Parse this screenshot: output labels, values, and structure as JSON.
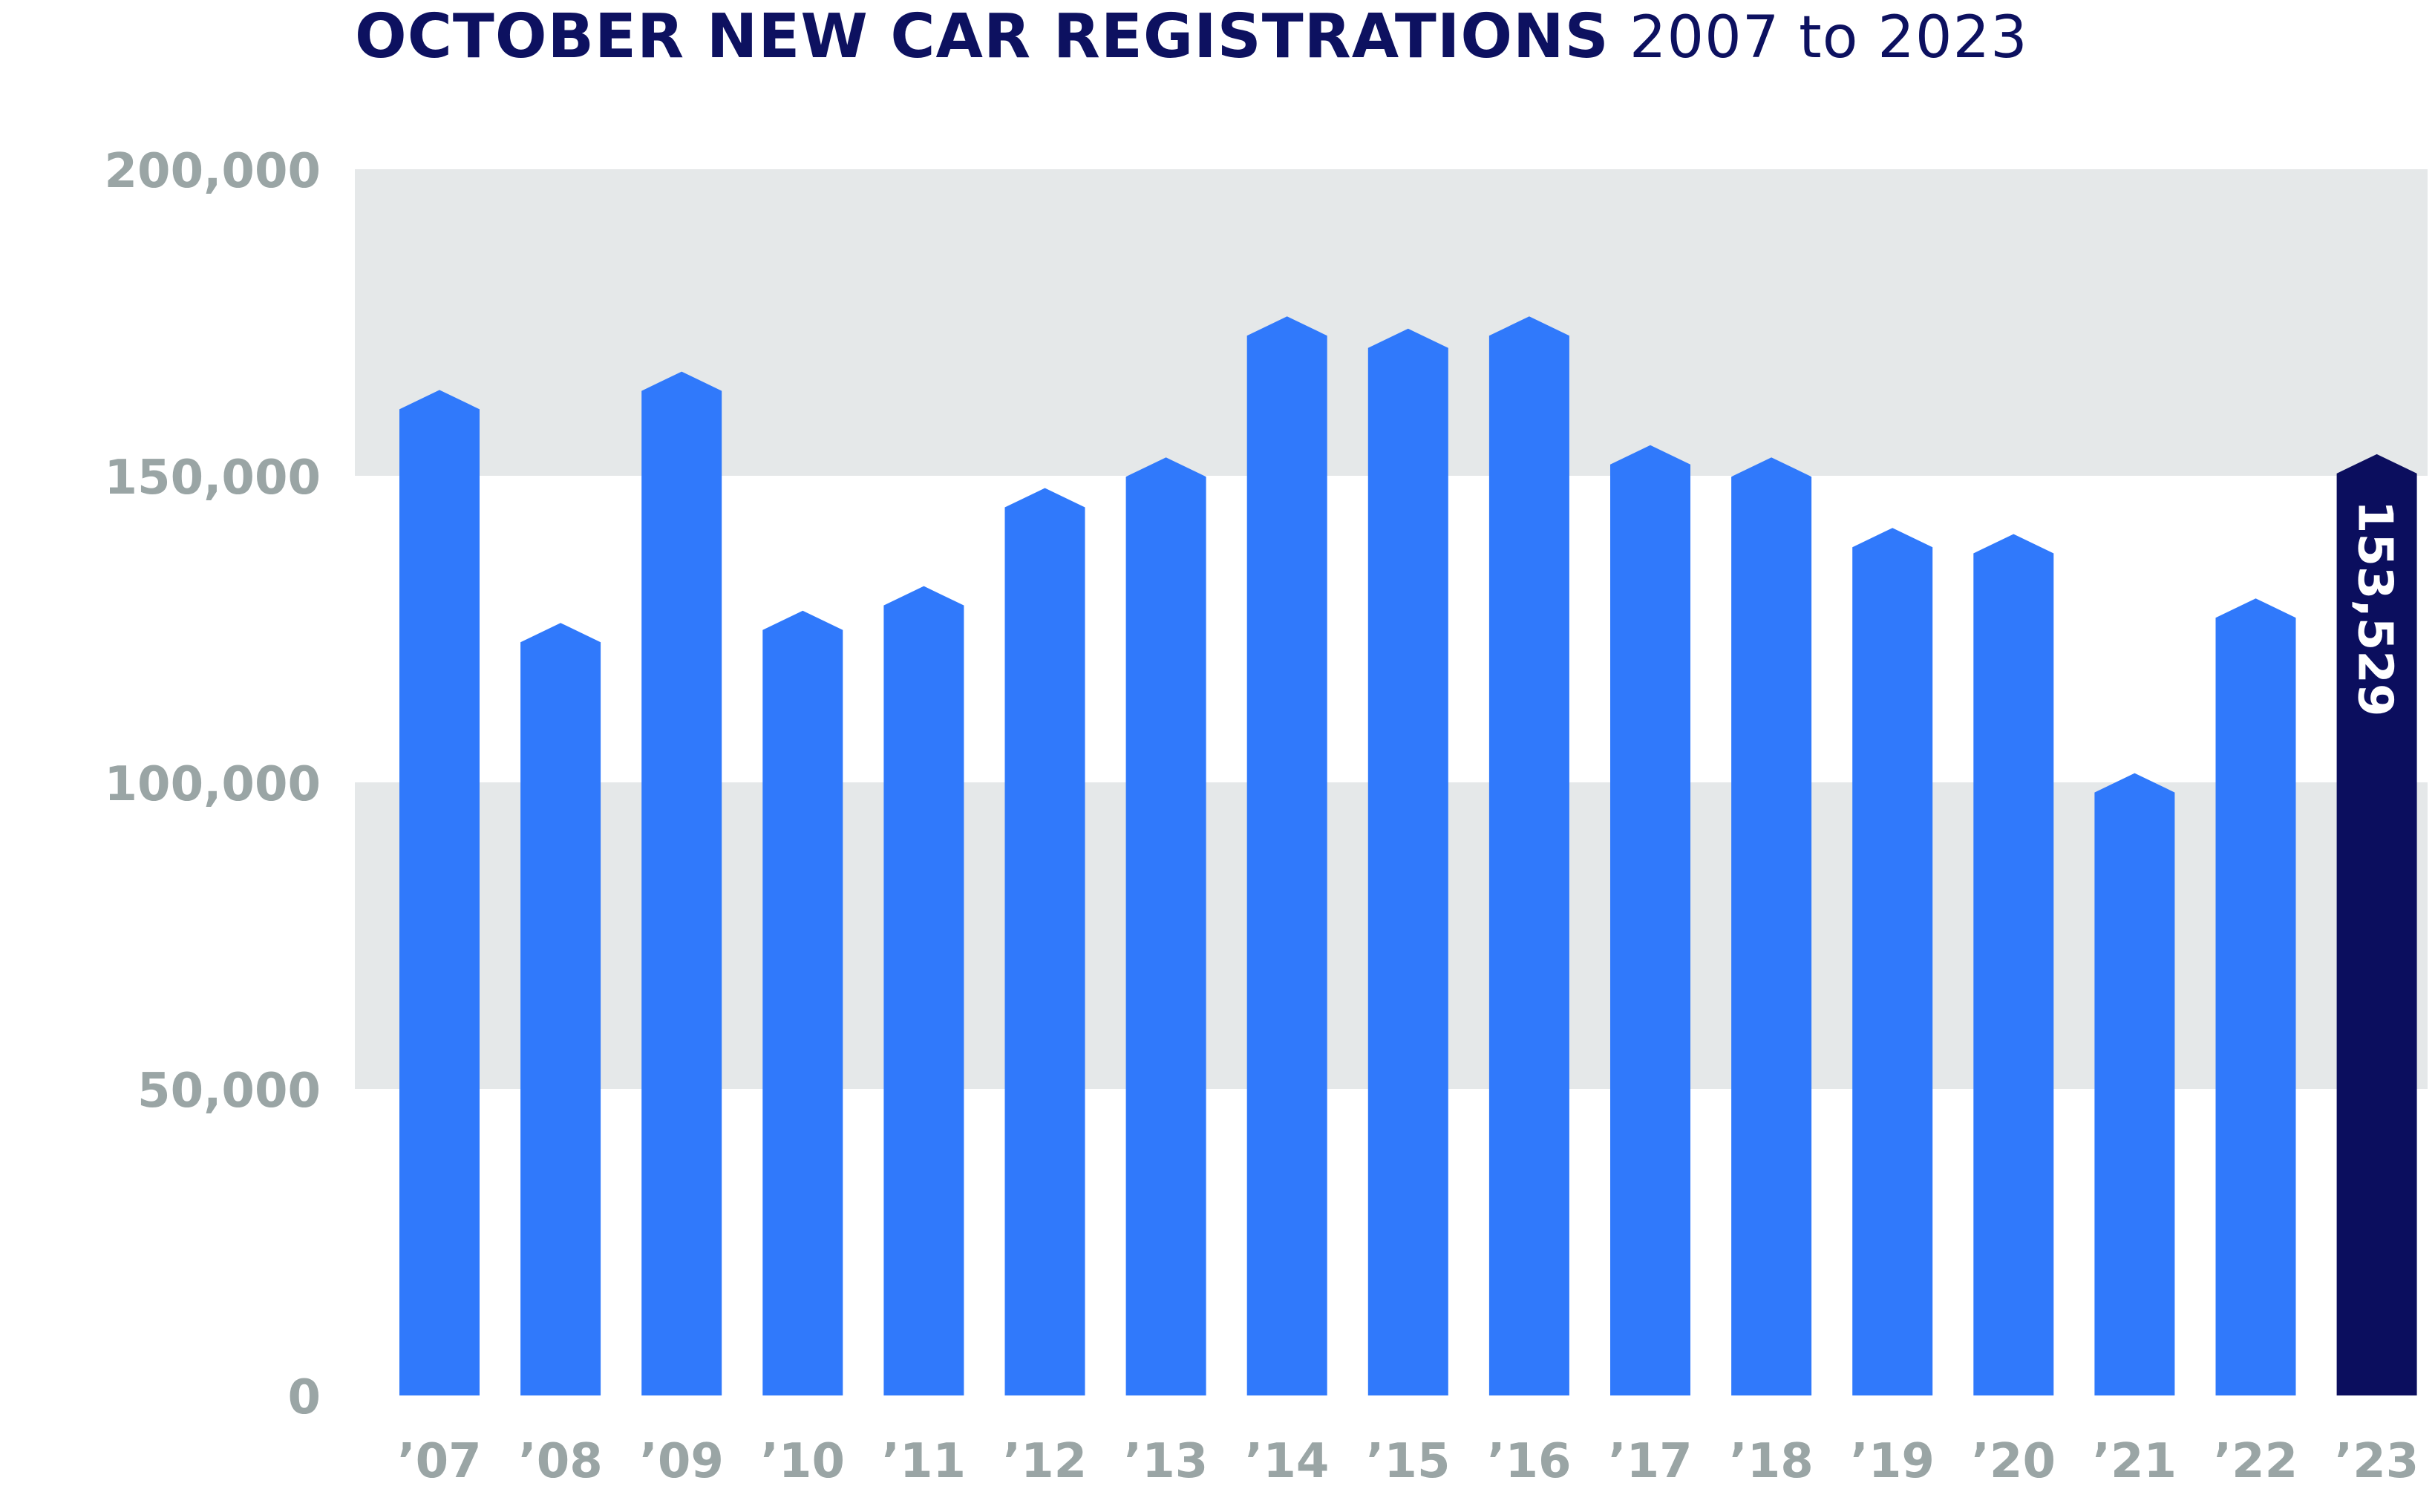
{
  "chart_data": {
    "type": "bar",
    "title": "OCTOBER NEW CAR REGISTRATIONS",
    "subtitle": "2007 to 2023",
    "categories": [
      "’07",
      "’08",
      "’09",
      "’10",
      "’11",
      "’12",
      "’13",
      "’14",
      "’15",
      "’16",
      "’17",
      "’18",
      "’19",
      "’20",
      "’21",
      "’22",
      "’23"
    ],
    "values": [
      164000,
      126000,
      167000,
      128000,
      132000,
      148000,
      153000,
      176000,
      174000,
      176000,
      155000,
      153000,
      141500,
      140500,
      101500,
      130000,
      153529
    ],
    "highlight_index": 16,
    "data_labels": [
      {
        "index": 16,
        "text": "153,529"
      }
    ],
    "yticks": [
      0,
      50000,
      100000,
      150000,
      200000
    ],
    "ytick_labels": [
      "0",
      "50,000",
      "100,000",
      "150,000",
      "200,000"
    ],
    "ylim": [
      0,
      200000
    ],
    "xlabel": "",
    "ylabel": "",
    "grid": "alternating horizontal bands",
    "legend": "none",
    "colors": {
      "bar": "#3079fb",
      "highlight_bar": "#0b0e5e",
      "band": "#e5e8e9",
      "tick_text": "#9aa5a5",
      "title": "#0d1160"
    }
  }
}
